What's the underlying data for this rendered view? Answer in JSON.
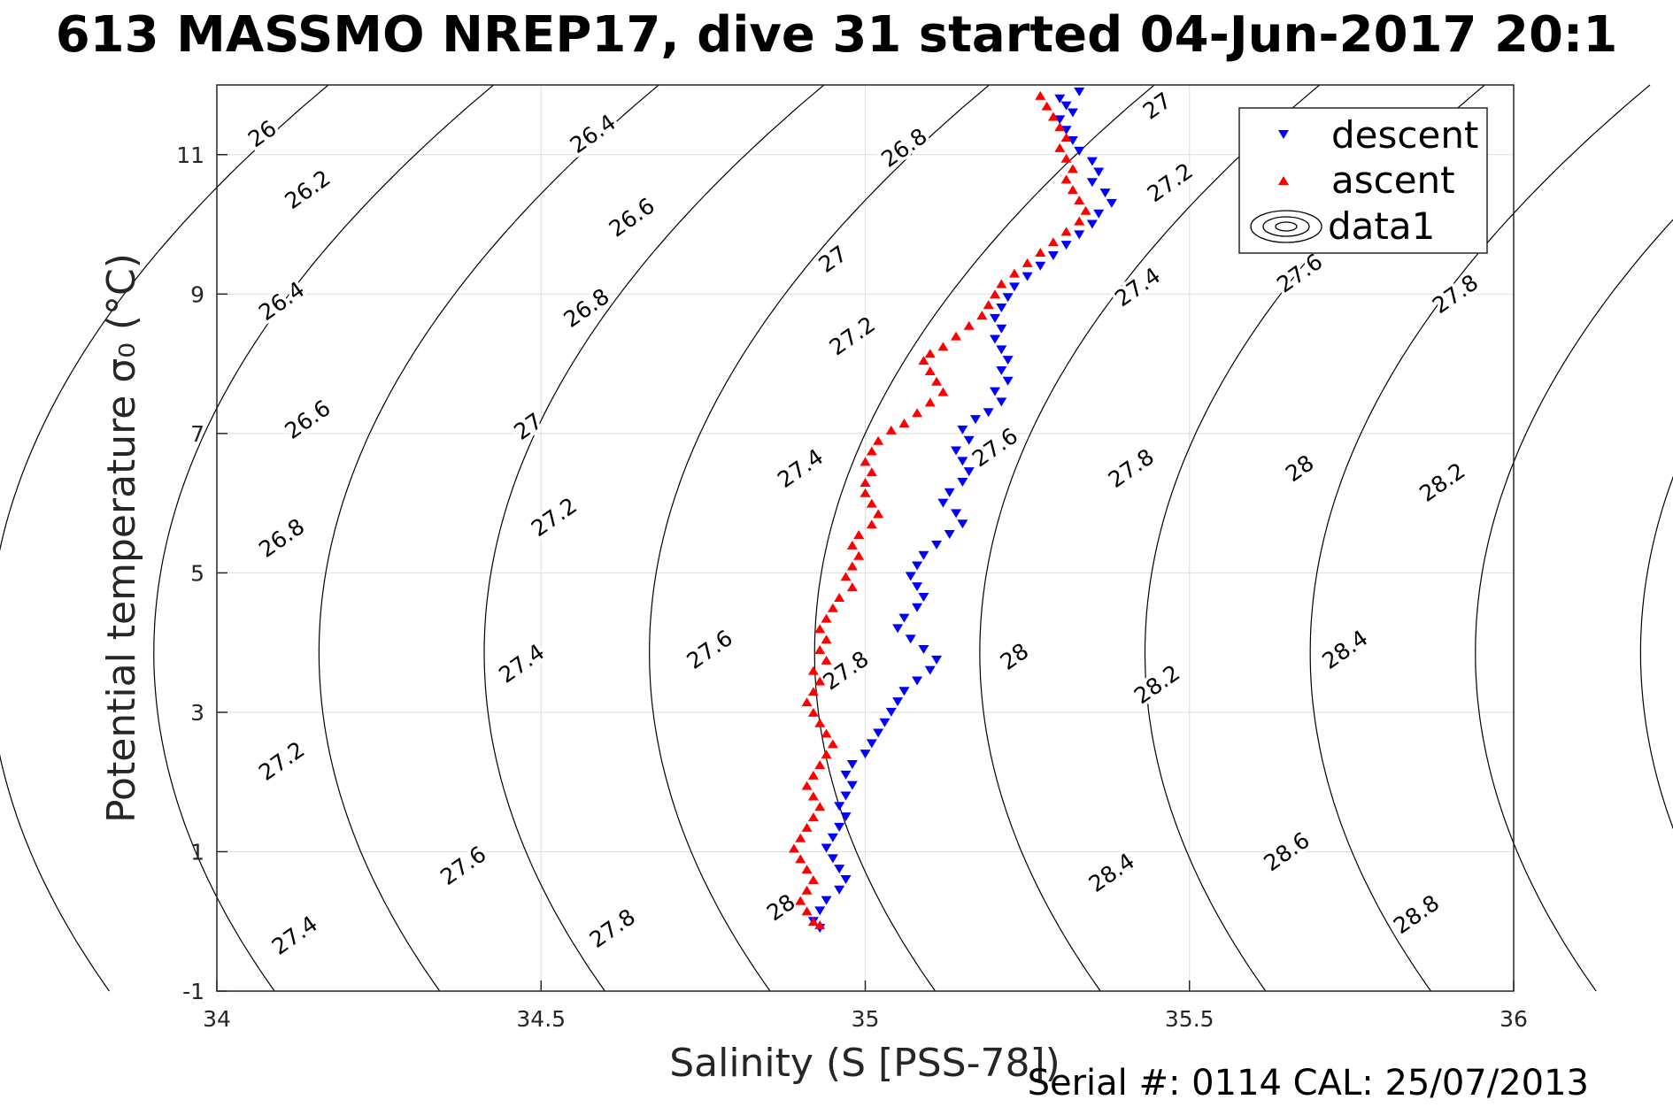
{
  "title": "613 MASSMO NREP17, dive 31 started 04-Jun-2017 20:1",
  "footer": "Serial #: 0114  CAL: 25/07/2013",
  "chart_data": {
    "type": "scatter",
    "xlabel": "Salinity (S [PSS-78])",
    "ylabel": "Potential temperature σ₀ (°C)",
    "xlim": [
      34,
      36
    ],
    "ylim": [
      -1,
      12
    ],
    "xticks": [
      34,
      34.5,
      35,
      35.5,
      36
    ],
    "yticks": [
      -1,
      1,
      3,
      5,
      7,
      9,
      11
    ],
    "xtick_labels": [
      "34",
      "34.5",
      "35",
      "35.5",
      "36"
    ],
    "ytick_labels": [
      "-1",
      "1",
      "3",
      "5",
      "7",
      "9",
      "11"
    ],
    "grid": true,
    "legend_position": "top-right",
    "legend": [
      {
        "label": "descent",
        "marker": "triangle-down",
        "color": "#0000ff"
      },
      {
        "label": "ascent",
        "marker": "triangle-up",
        "color": "#ff0000"
      },
      {
        "label": "data1",
        "marker": "contour"
      }
    ],
    "contour_levels": [
      26,
      26.2,
      26.4,
      26.6,
      26.8,
      27,
      27.2,
      27.4,
      27.6,
      27.8,
      28,
      28.2,
      28.4,
      28.6,
      28.8
    ],
    "contour_labels": [
      {
        "text": "26",
        "s": 34.07,
        "t": 11.3
      },
      {
        "text": "26.2",
        "s": 34.14,
        "t": 10.5
      },
      {
        "text": "26.4",
        "s": 34.1,
        "t": 8.9
      },
      {
        "text": "26.6",
        "s": 34.14,
        "t": 7.2
      },
      {
        "text": "26.8",
        "s": 34.1,
        "t": 5.5
      },
      {
        "text": "27.2",
        "s": 34.1,
        "t": 2.3
      },
      {
        "text": "27.4",
        "s": 34.12,
        "t": -0.2
      },
      {
        "text": "26.4",
        "s": 34.58,
        "t": 11.3
      },
      {
        "text": "26.6",
        "s": 34.64,
        "t": 10.1
      },
      {
        "text": "26.8",
        "s": 34.57,
        "t": 8.8
      },
      {
        "text": "27",
        "s": 34.48,
        "t": 7.1
      },
      {
        "text": "27.2",
        "s": 34.52,
        "t": 5.8
      },
      {
        "text": "27.4",
        "s": 34.47,
        "t": 3.7
      },
      {
        "text": "27.6",
        "s": 34.38,
        "t": 0.8
      },
      {
        "text": "27.8",
        "s": 34.61,
        "t": -0.1
      },
      {
        "text": "26.8",
        "s": 35.06,
        "t": 11.1
      },
      {
        "text": "27",
        "s": 34.95,
        "t": 9.5
      },
      {
        "text": "27.2",
        "s": 34.98,
        "t": 8.4
      },
      {
        "text": "27.4",
        "s": 34.9,
        "t": 6.5
      },
      {
        "text": "27.6",
        "s": 34.76,
        "t": 3.9
      },
      {
        "text": "27.8",
        "s": 34.97,
        "t": 3.6
      },
      {
        "text": "28",
        "s": 34.87,
        "t": 0.2
      },
      {
        "text": "27",
        "s": 35.45,
        "t": 11.7
      },
      {
        "text": "27.2",
        "s": 35.47,
        "t": 10.6
      },
      {
        "text": "27.4",
        "s": 35.42,
        "t": 9.1
      },
      {
        "text": "27.6",
        "s": 35.2,
        "t": 6.8
      },
      {
        "text": "27.8",
        "s": 35.41,
        "t": 6.5
      },
      {
        "text": "28",
        "s": 35.23,
        "t": 3.8
      },
      {
        "text": "28.2",
        "s": 35.45,
        "t": 3.4
      },
      {
        "text": "28.4",
        "s": 35.38,
        "t": 0.7
      },
      {
        "text": "27.6",
        "s": 35.67,
        "t": 9.3
      },
      {
        "text": "27.8",
        "s": 35.91,
        "t": 9.0
      },
      {
        "text": "28",
        "s": 35.67,
        "t": 6.5
      },
      {
        "text": "28.2",
        "s": 35.89,
        "t": 6.3
      },
      {
        "text": "28.4",
        "s": 35.74,
        "t": 3.9
      },
      {
        "text": "28.6",
        "s": 35.65,
        "t": 1.0
      },
      {
        "text": "28.8",
        "s": 35.85,
        "t": 0.1
      }
    ],
    "descent": [
      [
        35.33,
        11.9
      ],
      [
        35.3,
        11.8
      ],
      [
        35.31,
        11.7
      ],
      [
        35.32,
        11.6
      ],
      [
        35.3,
        11.5
      ],
      [
        35.31,
        11.35
      ],
      [
        35.32,
        11.2
      ],
      [
        35.33,
        11.05
      ],
      [
        35.35,
        10.9
      ],
      [
        35.36,
        10.75
      ],
      [
        35.35,
        10.6
      ],
      [
        35.37,
        10.45
      ],
      [
        35.38,
        10.3
      ],
      [
        35.36,
        10.15
      ],
      [
        35.35,
        10.0
      ],
      [
        35.33,
        9.85
      ],
      [
        35.31,
        9.7
      ],
      [
        35.29,
        9.55
      ],
      [
        35.27,
        9.4
      ],
      [
        35.25,
        9.25
      ],
      [
        35.23,
        9.1
      ],
      [
        35.22,
        8.95
      ],
      [
        35.21,
        8.8
      ],
      [
        35.2,
        8.65
      ],
      [
        35.21,
        8.5
      ],
      [
        35.2,
        8.35
      ],
      [
        35.21,
        8.2
      ],
      [
        35.22,
        8.05
      ],
      [
        35.21,
        7.9
      ],
      [
        35.22,
        7.75
      ],
      [
        35.2,
        7.6
      ],
      [
        35.21,
        7.45
      ],
      [
        35.19,
        7.3
      ],
      [
        35.17,
        7.2
      ],
      [
        35.15,
        7.05
      ],
      [
        35.16,
        6.9
      ],
      [
        35.14,
        6.75
      ],
      [
        35.15,
        6.6
      ],
      [
        35.16,
        6.45
      ],
      [
        35.15,
        6.3
      ],
      [
        35.13,
        6.15
      ],
      [
        35.12,
        6.0
      ],
      [
        35.14,
        5.85
      ],
      [
        35.15,
        5.7
      ],
      [
        35.13,
        5.55
      ],
      [
        35.11,
        5.4
      ],
      [
        35.09,
        5.25
      ],
      [
        35.08,
        5.1
      ],
      [
        35.07,
        4.95
      ],
      [
        35.08,
        4.8
      ],
      [
        35.09,
        4.65
      ],
      [
        35.08,
        4.5
      ],
      [
        35.06,
        4.35
      ],
      [
        35.05,
        4.2
      ],
      [
        35.07,
        4.05
      ],
      [
        35.09,
        3.9
      ],
      [
        35.11,
        3.75
      ],
      [
        35.1,
        3.6
      ],
      [
        35.08,
        3.45
      ],
      [
        35.06,
        3.3
      ],
      [
        35.05,
        3.15
      ],
      [
        35.04,
        3.0
      ],
      [
        35.03,
        2.85
      ],
      [
        35.02,
        2.7
      ],
      [
        35.01,
        2.55
      ],
      [
        35.0,
        2.4
      ],
      [
        34.98,
        2.25
      ],
      [
        34.97,
        2.1
      ],
      [
        34.98,
        1.95
      ],
      [
        34.97,
        1.8
      ],
      [
        34.96,
        1.65
      ],
      [
        34.97,
        1.5
      ],
      [
        34.96,
        1.35
      ],
      [
        34.95,
        1.2
      ],
      [
        34.94,
        1.05
      ],
      [
        34.95,
        0.9
      ],
      [
        34.96,
        0.75
      ],
      [
        34.97,
        0.6
      ],
      [
        34.96,
        0.45
      ],
      [
        34.94,
        0.3
      ],
      [
        34.93,
        0.15
      ],
      [
        34.92,
        0.0
      ],
      [
        34.93,
        -0.1
      ]
    ],
    "ascent": [
      [
        35.27,
        11.85
      ],
      [
        35.28,
        11.7
      ],
      [
        35.29,
        11.55
      ],
      [
        35.3,
        11.4
      ],
      [
        35.31,
        11.25
      ],
      [
        35.3,
        11.1
      ],
      [
        35.31,
        10.95
      ],
      [
        35.32,
        10.8
      ],
      [
        35.31,
        10.65
      ],
      [
        35.32,
        10.5
      ],
      [
        35.33,
        10.35
      ],
      [
        35.34,
        10.2
      ],
      [
        35.33,
        10.05
      ],
      [
        35.31,
        9.9
      ],
      [
        35.29,
        9.75
      ],
      [
        35.27,
        9.6
      ],
      [
        35.25,
        9.45
      ],
      [
        35.23,
        9.3
      ],
      [
        35.21,
        9.15
      ],
      [
        35.2,
        9.0
      ],
      [
        35.19,
        8.85
      ],
      [
        35.18,
        8.7
      ],
      [
        35.16,
        8.55
      ],
      [
        35.14,
        8.4
      ],
      [
        35.12,
        8.25
      ],
      [
        35.1,
        8.15
      ],
      [
        35.09,
        8.05
      ],
      [
        35.1,
        7.9
      ],
      [
        35.11,
        7.75
      ],
      [
        35.12,
        7.6
      ],
      [
        35.1,
        7.45
      ],
      [
        35.08,
        7.3
      ],
      [
        35.06,
        7.15
      ],
      [
        35.04,
        7.05
      ],
      [
        35.02,
        6.9
      ],
      [
        35.01,
        6.75
      ],
      [
        35.0,
        6.6
      ],
      [
        35.01,
        6.45
      ],
      [
        35.0,
        6.3
      ],
      [
        35.0,
        6.15
      ],
      [
        35.01,
        6.0
      ],
      [
        35.02,
        5.85
      ],
      [
        35.01,
        5.7
      ],
      [
        34.99,
        5.55
      ],
      [
        34.98,
        5.4
      ],
      [
        34.99,
        5.25
      ],
      [
        34.98,
        5.1
      ],
      [
        34.97,
        4.95
      ],
      [
        34.98,
        4.8
      ],
      [
        34.96,
        4.65
      ],
      [
        34.95,
        4.5
      ],
      [
        34.94,
        4.35
      ],
      [
        34.93,
        4.2
      ],
      [
        34.94,
        4.05
      ],
      [
        34.93,
        3.9
      ],
      [
        34.94,
        3.75
      ],
      [
        34.92,
        3.6
      ],
      [
        34.93,
        3.45
      ],
      [
        34.92,
        3.3
      ],
      [
        34.91,
        3.15
      ],
      [
        34.92,
        3.0
      ],
      [
        34.93,
        2.85
      ],
      [
        34.94,
        2.7
      ],
      [
        34.95,
        2.55
      ],
      [
        34.94,
        2.4
      ],
      [
        34.93,
        2.25
      ],
      [
        34.92,
        2.1
      ],
      [
        34.91,
        1.95
      ],
      [
        34.92,
        1.8
      ],
      [
        34.93,
        1.65
      ],
      [
        34.92,
        1.5
      ],
      [
        34.91,
        1.35
      ],
      [
        34.9,
        1.2
      ],
      [
        34.89,
        1.05
      ],
      [
        34.9,
        0.9
      ],
      [
        34.91,
        0.75
      ],
      [
        34.92,
        0.6
      ],
      [
        34.91,
        0.45
      ],
      [
        34.9,
        0.3
      ],
      [
        34.91,
        0.15
      ],
      [
        34.92,
        0.0
      ],
      [
        34.93,
        -0.05
      ]
    ]
  }
}
